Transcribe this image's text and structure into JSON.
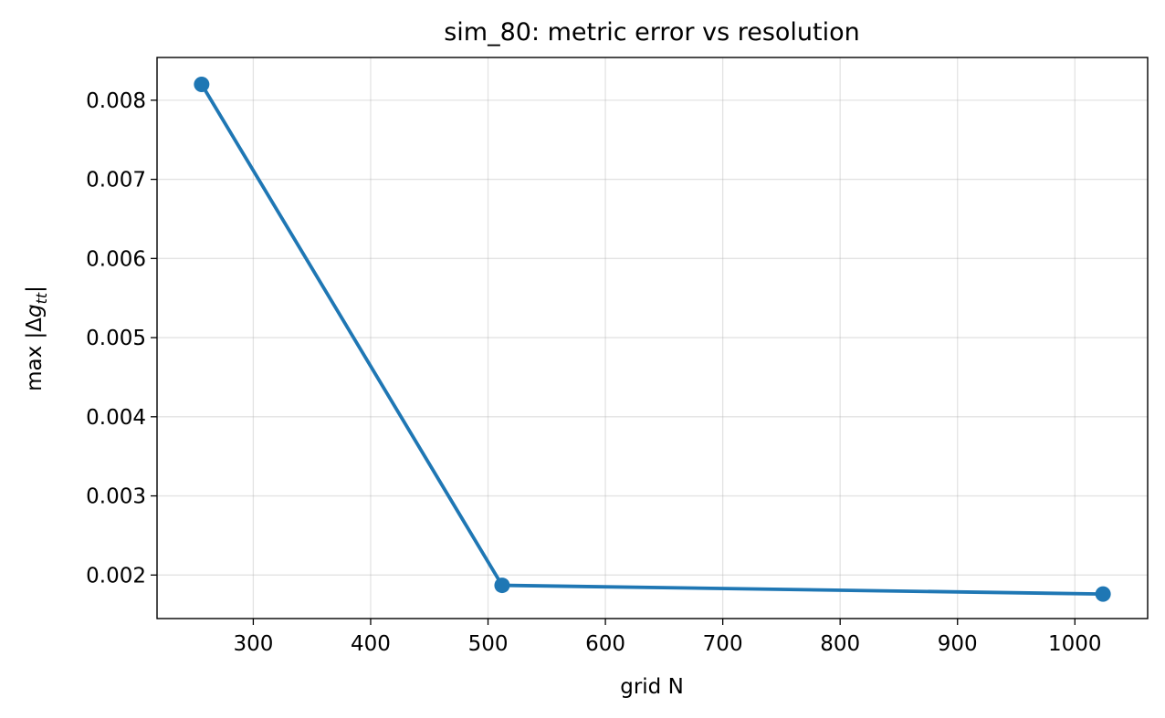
{
  "chart_data": {
    "type": "line",
    "title": "sim_80: metric error vs resolution",
    "xlabel": "grid N",
    "ylabel_prefix": "max |Δ",
    "ylabel_var": "g",
    "ylabel_sub": "tt",
    "ylabel_suffix": "|",
    "x": [
      256,
      512,
      1024
    ],
    "y": [
      0.0082,
      0.00187,
      0.00176
    ],
    "xlim": [
      218,
      1062
    ],
    "ylim": [
      0.00145,
      0.00854
    ],
    "xticks": [
      300,
      400,
      500,
      600,
      700,
      800,
      900,
      1000
    ],
    "xtick_labels": [
      "300",
      "400",
      "500",
      "600",
      "700",
      "800",
      "900",
      "1000"
    ],
    "yticks": [
      0.002,
      0.003,
      0.004,
      0.005,
      0.006,
      0.007,
      0.008
    ],
    "ytick_labels": [
      "0.002",
      "0.003",
      "0.004",
      "0.005",
      "0.006",
      "0.007",
      "0.008"
    ],
    "grid": true,
    "line_color": "#1f77b4",
    "marker": "circle"
  }
}
